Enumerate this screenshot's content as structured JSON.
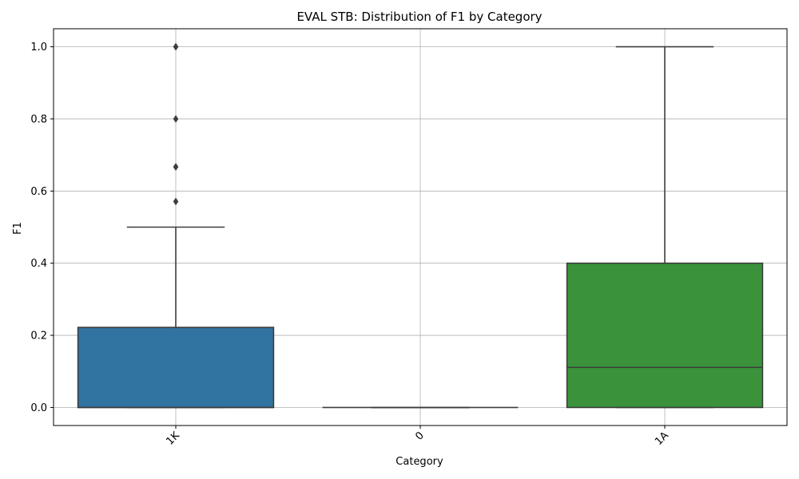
{
  "chart_data": {
    "type": "box",
    "title": "EVAL STB: Distribution of F1 by Category",
    "xlabel": "Category",
    "ylabel": "F1",
    "ylim": [
      -0.05,
      1.05
    ],
    "yticks": [
      0.0,
      0.2,
      0.4,
      0.6,
      0.8,
      1.0
    ],
    "ytick_labels": [
      "0.0",
      "0.2",
      "0.4",
      "0.6",
      "0.8",
      "1.0"
    ],
    "grid": true,
    "categories": [
      "1K",
      "0",
      "1A"
    ],
    "boxes": [
      {
        "category": "1K",
        "whisker_low": 0.0,
        "q1": 0.0,
        "median": 0.0,
        "q3": 0.222,
        "whisker_high": 0.5,
        "outliers": [
          0.571,
          0.667,
          0.667,
          0.8,
          1.0,
          1.0
        ],
        "color": "#3274a1"
      },
      {
        "category": "0",
        "whisker_low": 0.0,
        "q1": 0.0,
        "median": 0.0,
        "q3": 0.0,
        "whisker_high": 0.0,
        "outliers": [],
        "color": "#e1812c"
      },
      {
        "category": "1A",
        "whisker_low": 0.0,
        "q1": 0.0,
        "median": 0.111,
        "q3": 0.4,
        "whisker_high": 1.0,
        "outliers": [],
        "color": "#3a923a"
      }
    ],
    "line_color": "#3d3d3d",
    "grid_color": "#b0b0b0"
  }
}
